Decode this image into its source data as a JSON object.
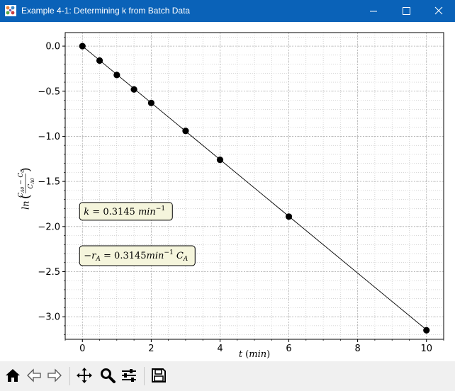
{
  "window": {
    "title": "Example 4-1: Determining k from Batch Data",
    "icon": "matplotlib-figure-icon",
    "controls": [
      "minimize-icon",
      "maximize-icon",
      "close-icon"
    ]
  },
  "chart_data": {
    "type": "line",
    "marker": "circle",
    "x": [
      0,
      0.5,
      1,
      1.5,
      2,
      3,
      4,
      6,
      10
    ],
    "y": [
      0.0,
      -0.16,
      -0.32,
      -0.48,
      -0.63,
      -0.94,
      -1.26,
      -1.89,
      -3.15
    ],
    "fit_line": {
      "x": [
        0,
        10
      ],
      "y": [
        0.0,
        -3.145
      ]
    },
    "xlim": [
      -0.5,
      10.5
    ],
    "ylim": [
      -3.25,
      0.15
    ],
    "xticks": [
      0,
      2,
      4,
      6,
      8,
      10
    ],
    "xtick_labels": [
      "0",
      "2",
      "4",
      "6",
      "8",
      "10"
    ],
    "yticks": [
      0.0,
      -0.5,
      -1.0,
      -1.5,
      -2.0,
      -2.5,
      -3.0
    ],
    "ytick_labels": [
      "0.0",
      "−0.5",
      "−1.0",
      "−1.5",
      "−2.0",
      "−2.5",
      "−3.0"
    ],
    "xlabel": "t (min)",
    "ylabel": "ln((C_A0 − C_C)/C_A0)",
    "grid": "major and minor, dotted",
    "annotations": [
      {
        "text": "k = 0.3145 min^-1",
        "x": 0,
        "y": -1.82
      },
      {
        "text": "−r_A = 0.3145min^-1 C_A",
        "x": 0,
        "y": -2.3
      }
    ],
    "colors": {
      "line": "#000000",
      "marker": "#000000",
      "annotation_bg": "#f5f5dc",
      "grid": "#b0b0b0"
    }
  },
  "toolbar": {
    "buttons": [
      "home-icon",
      "back-arrow-icon",
      "forward-arrow-icon",
      "pan-icon",
      "zoom-icon",
      "configure-subplots-icon",
      "save-icon"
    ]
  },
  "colors": {
    "titlebar": "#0a62b8",
    "toolbar": "#f0f0f0"
  }
}
